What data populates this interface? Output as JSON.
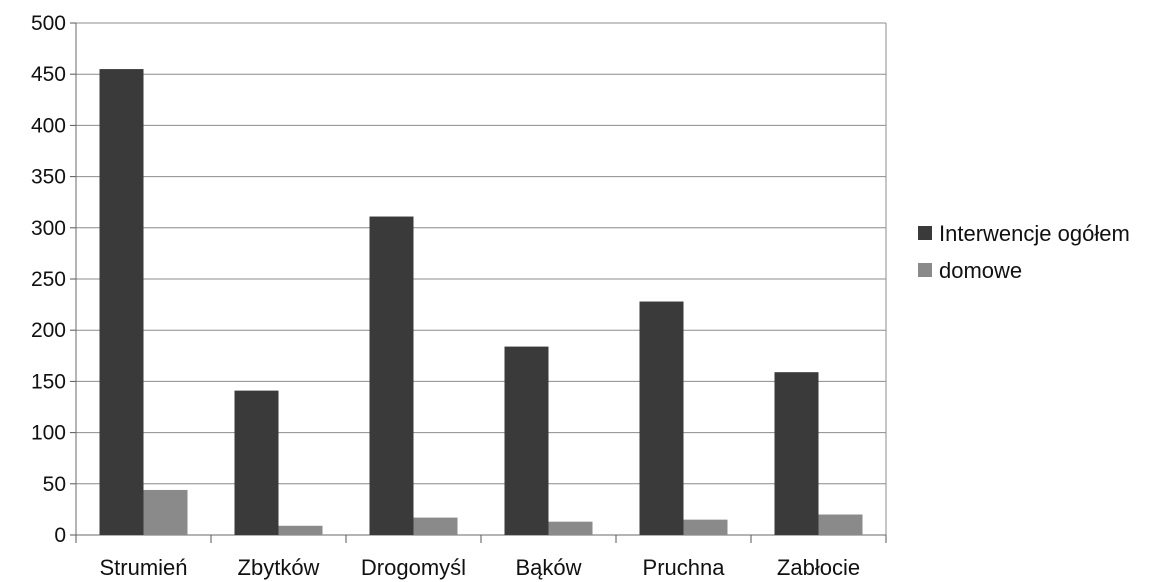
{
  "chart_data": {
    "type": "bar",
    "title": "",
    "xlabel": "",
    "ylabel": "",
    "categories": [
      "Strumień",
      "Zbytków",
      "Drogomyśl",
      "Bąków",
      "Pruchna",
      "Zabłocie"
    ],
    "series": [
      {
        "name": "Interwencje ogółem",
        "values": [
          455,
          141,
          311,
          184,
          228,
          159
        ],
        "color": "#3a3a3a"
      },
      {
        "name": "domowe",
        "values": [
          44,
          9,
          17,
          13,
          15,
          20
        ],
        "color": "#8a8a8a"
      }
    ],
    "ylim": [
      0,
      500
    ],
    "yticks": [
      "0",
      "50",
      "100",
      "150",
      "200",
      "250",
      "300",
      "350",
      "400",
      "450",
      "500"
    ],
    "grid": true,
    "legend_position": "right"
  }
}
